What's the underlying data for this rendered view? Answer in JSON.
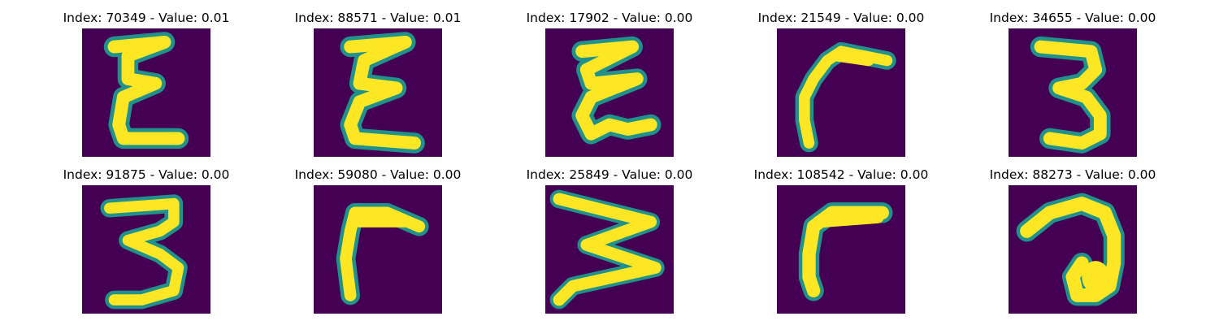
{
  "colors": {
    "background": "#440154",
    "stroke": "#fde725",
    "edge": "#21918c",
    "mid": "#5ec962"
  },
  "cells": [
    {
      "title": "Index: 70349 - Value: 0.01",
      "glyph": "epsilon-tall"
    },
    {
      "title": "Index: 88571 - Value: 0.01",
      "glyph": "epsilon-tall"
    },
    {
      "title": "Index: 17902 - Value: 0.00",
      "glyph": "epsilon-tall"
    },
    {
      "title": "Index: 21549 - Value: 0.00",
      "glyph": "hook-left"
    },
    {
      "title": "Index: 34655 - Value: 0.00",
      "glyph": "three"
    },
    {
      "title": "Index: 91875 - Value: 0.00",
      "glyph": "three"
    },
    {
      "title": "Index: 59080 - Value: 0.00",
      "glyph": "hook-left"
    },
    {
      "title": "Index: 25849 - Value: 0.00",
      "glyph": "zigzag"
    },
    {
      "title": "Index: 108542 - Value: 0.00",
      "glyph": "hook-left"
    },
    {
      "title": "Index: 88273 - Value: 0.00",
      "glyph": "loop"
    }
  ]
}
